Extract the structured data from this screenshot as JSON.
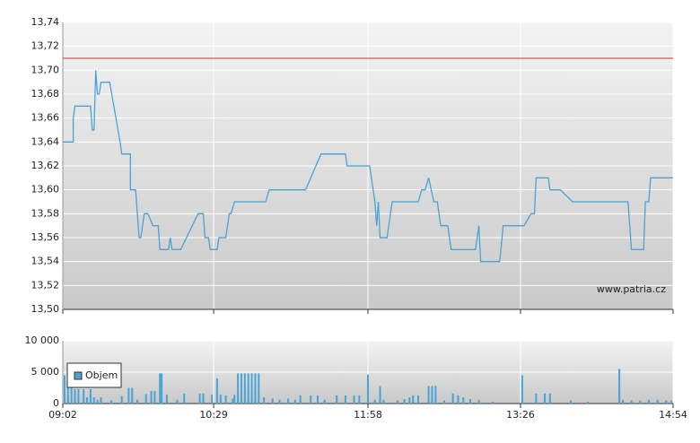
{
  "chart_data": [
    {
      "type": "line",
      "color": "#4aa3d6",
      "grid": true,
      "watermark": "www.patria.cz",
      "reference_line": {
        "value": 13.71,
        "color": "#cc3333"
      },
      "ylim": [
        13.5,
        13.74
      ],
      "yticks": [
        {
          "value": 13.5,
          "label": "13,50"
        },
        {
          "value": 13.52,
          "label": "13,52"
        },
        {
          "value": 13.54,
          "label": "13,54"
        },
        {
          "value": 13.56,
          "label": "13,56"
        },
        {
          "value": 13.58,
          "label": "13,58"
        },
        {
          "value": 13.6,
          "label": "13,60"
        },
        {
          "value": 13.62,
          "label": "13,62"
        },
        {
          "value": 13.64,
          "label": "13,64"
        },
        {
          "value": 13.66,
          "label": "13,66"
        },
        {
          "value": 13.68,
          "label": "13,68"
        },
        {
          "value": 13.7,
          "label": "13,70"
        },
        {
          "value": 13.72,
          "label": "13,72"
        },
        {
          "value": 13.74,
          "label": "13,74"
        }
      ],
      "x": [
        "09:02",
        "09:08",
        "09:08",
        "09:09",
        "09:18",
        "09:19",
        "09:20",
        "09:21",
        "09:22",
        "09:23",
        "09:24",
        "09:29",
        "09:35",
        "09:36",
        "09:41",
        "09:41",
        "09:44",
        "09:46",
        "09:47",
        "09:49",
        "09:51",
        "09:54",
        "09:57",
        "09:58",
        "10:03",
        "10:04",
        "10:05",
        "10:10",
        "10:20",
        "10:23",
        "10:24",
        "10:26",
        "10:27",
        "10:31",
        "10:32",
        "10:36",
        "10:38",
        "10:39",
        "10:41",
        "10:59",
        "11:01",
        "11:22",
        "11:28",
        "11:31",
        "11:45",
        "11:46",
        "11:59",
        "12:01",
        "12:02",
        "12:03",
        "12:04",
        "12:05",
        "12:09",
        "12:12",
        "12:27",
        "12:29",
        "12:31",
        "12:33",
        "12:36",
        "12:38",
        "12:40",
        "12:44",
        "12:46",
        "13:00",
        "13:02",
        "13:03",
        "13:14",
        "13:16",
        "13:28",
        "13:32",
        "13:34",
        "13:35",
        "13:42",
        "13:43",
        "13:49",
        "13:56",
        "14:28",
        "14:30",
        "14:37",
        "14:38",
        "14:40",
        "14:41",
        "14:54"
      ],
      "values": [
        13.64,
        13.64,
        13.66,
        13.67,
        13.67,
        13.65,
        13.65,
        13.7,
        13.68,
        13.68,
        13.69,
        13.69,
        13.64,
        13.63,
        13.63,
        13.6,
        13.6,
        13.56,
        13.56,
        13.58,
        13.58,
        13.57,
        13.57,
        13.55,
        13.55,
        13.56,
        13.55,
        13.55,
        13.58,
        13.58,
        13.56,
        13.56,
        13.55,
        13.55,
        13.56,
        13.56,
        13.58,
        13.58,
        13.59,
        13.59,
        13.6,
        13.6,
        13.62,
        13.63,
        13.63,
        13.62,
        13.62,
        13.6,
        13.59,
        13.57,
        13.59,
        13.56,
        13.56,
        13.59,
        13.59,
        13.6,
        13.6,
        13.61,
        13.59,
        13.59,
        13.57,
        13.57,
        13.55,
        13.55,
        13.57,
        13.54,
        13.54,
        13.57,
        13.57,
        13.58,
        13.58,
        13.61,
        13.61,
        13.6,
        13.6,
        13.59,
        13.59,
        13.55,
        13.55,
        13.59,
        13.59,
        13.61,
        13.61
      ]
    },
    {
      "type": "bar",
      "grid": true,
      "legend": "upper left",
      "ylim": [
        0,
        10000
      ],
      "yticks": [
        0,
        {
          "value": 5000,
          "label": "5 000"
        },
        {
          "value": 10000,
          "label": "10 000"
        }
      ],
      "xticks": [
        "09:02",
        "10:29",
        "11:58",
        "13:26",
        "14:54"
      ],
      "x": [
        "09:03",
        "09:05",
        "09:07",
        "09:09",
        "09:11",
        "09:14",
        "09:16",
        "09:18",
        "09:20",
        "09:22",
        "09:24",
        "09:30",
        "09:36",
        "09:40",
        "09:42",
        "09:45",
        "09:50",
        "09:53",
        "09:55",
        "09:58",
        "09:59",
        "10:02",
        "10:08",
        "10:12",
        "10:21",
        "10:23",
        "10:28",
        "10:31",
        "10:33",
        "10:36",
        "10:40",
        "10:41",
        "10:43",
        "10:45",
        "10:47",
        "10:49",
        "10:51",
        "10:53",
        "10:55",
        "10:58",
        "11:03",
        "11:07",
        "11:12",
        "11:16",
        "11:19",
        "11:25",
        "11:29",
        "11:33",
        "11:40",
        "11:45",
        "11:50",
        "11:53",
        "11:58",
        "12:02",
        "12:05",
        "12:07",
        "12:15",
        "12:19",
        "12:22",
        "12:24",
        "12:27",
        "12:33",
        "12:35",
        "12:37",
        "12:42",
        "12:47",
        "12:50",
        "12:53",
        "12:57",
        "13:02",
        "13:10",
        "13:27",
        "13:35",
        "13:40",
        "13:43",
        "13:55",
        "14:05",
        "14:23",
        "14:25",
        "14:30",
        "14:35",
        "14:40",
        "14:45",
        "14:50",
        "14:53"
      ],
      "series": [
        {
          "name": "Objem",
          "color": "#4aa3d6",
          "values": [
            4500,
            2500,
            4500,
            2300,
            2300,
            2300,
            1000,
            2300,
            1000,
            600,
            1000,
            500,
            1200,
            2500,
            2500,
            600,
            1500,
            2000,
            2000,
            4800,
            4800,
            1400,
            600,
            1600,
            1600,
            1600,
            1400,
            4000,
            1400,
            1300,
            800,
            1400,
            4800,
            4800,
            4800,
            4800,
            4800,
            4800,
            4800,
            1000,
            800,
            600,
            800,
            600,
            1300,
            1300,
            1300,
            600,
            1300,
            1300,
            1300,
            1300,
            4600,
            600,
            2800,
            600,
            500,
            700,
            1000,
            1300,
            1300,
            2800,
            2800,
            2800,
            500,
            1600,
            1300,
            1000,
            700,
            600,
            300,
            4500,
            1600,
            1600,
            1600,
            500,
            300,
            5500,
            600,
            500,
            500,
            600,
            600,
            500,
            500
          ]
        }
      ]
    }
  ]
}
